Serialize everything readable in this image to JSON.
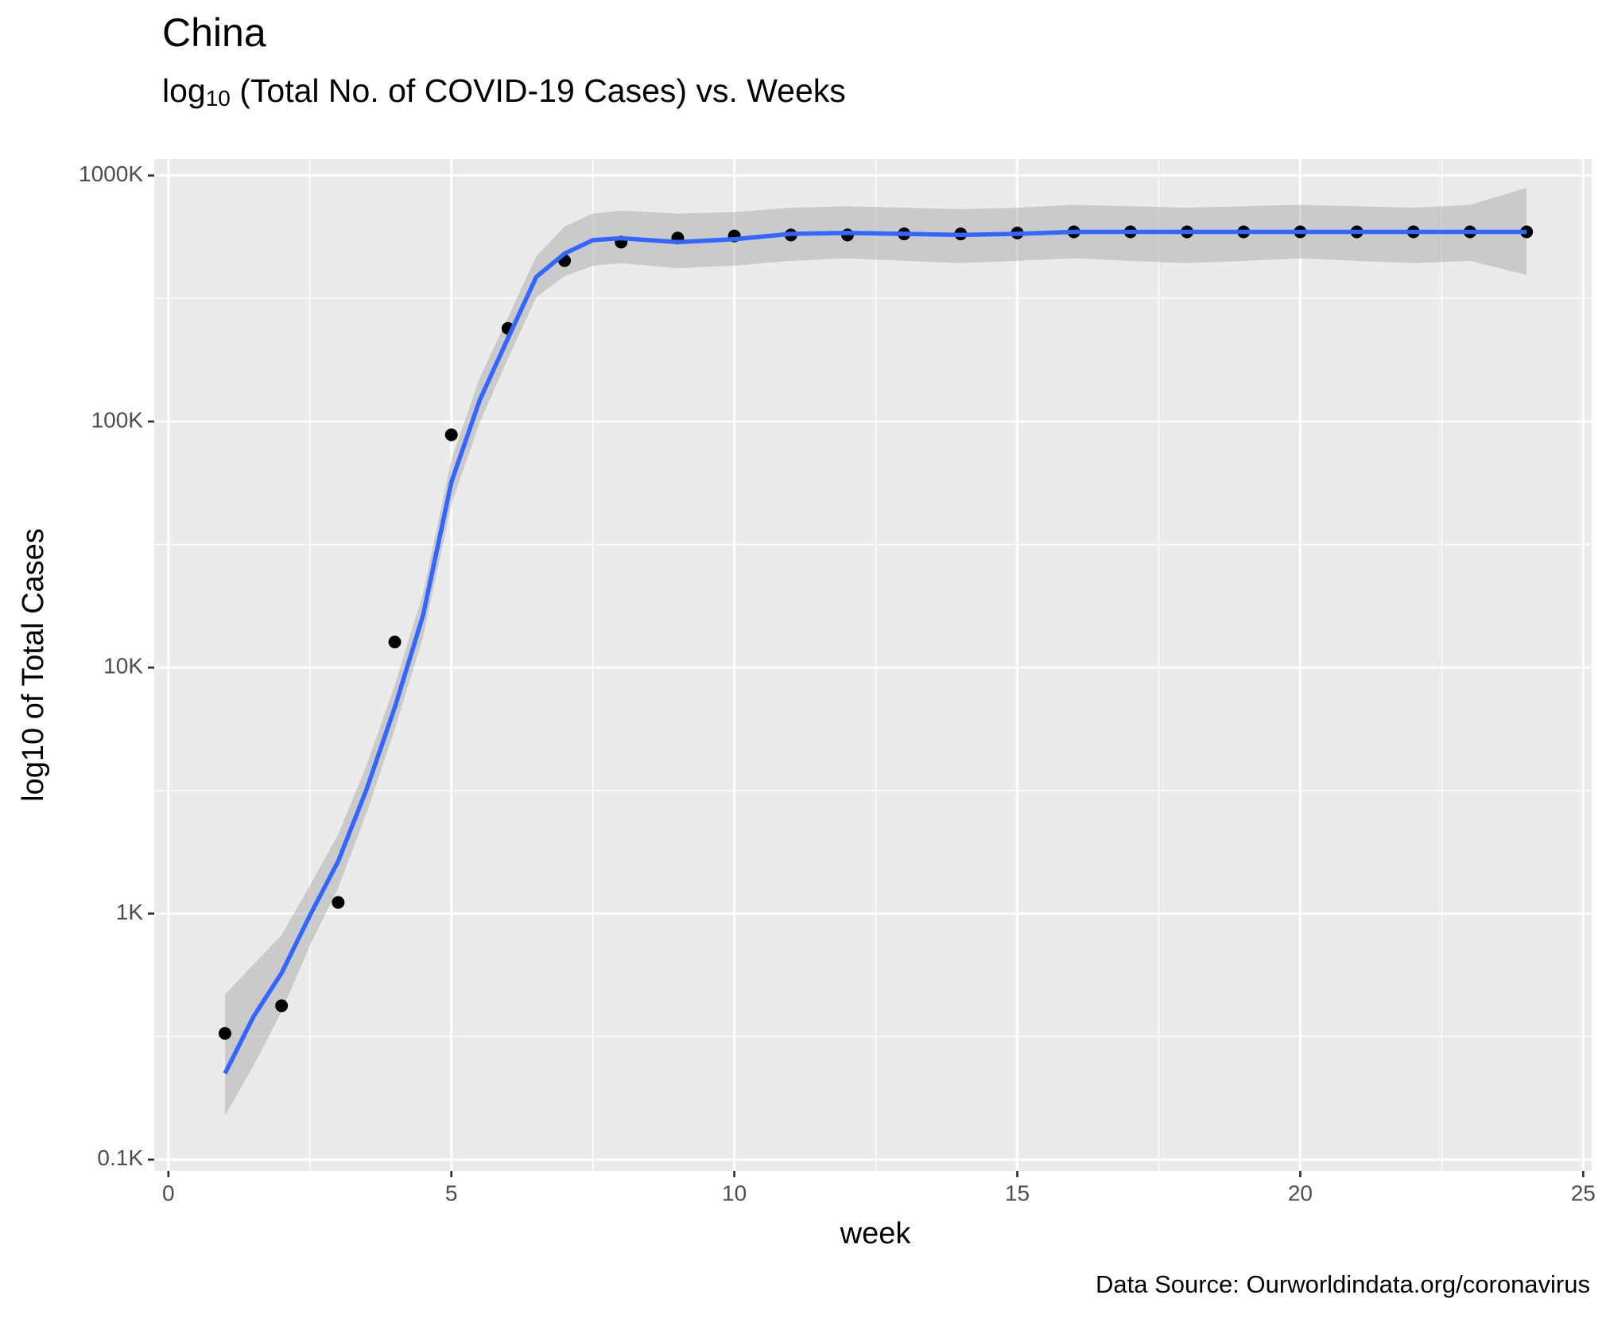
{
  "chart_data": {
    "type": "scatter-smooth",
    "title": "China",
    "subtitle": [
      "log",
      "10",
      " (Total No. of COVID-19 Cases) vs. Weeks"
    ],
    "x_label": "week",
    "y_label": "log10 of Total Cases",
    "caption": "Data Source: Ourworldindata.org/coronavirus",
    "log_y": true,
    "grid": true,
    "xlim": [
      -0.25,
      25.15
    ],
    "ylim": [
      90,
      1166000
    ],
    "xticks": [
      0,
      5,
      10,
      15,
      20,
      25
    ],
    "x_minor_ticks": [
      2.5,
      7.5,
      12.5,
      17.5,
      22.5
    ],
    "yticks": [
      {
        "value": 100,
        "label": "0.1K"
      },
      {
        "value": 1000,
        "label": "1K"
      },
      {
        "value": 10000,
        "label": "10K"
      },
      {
        "value": 100000,
        "label": "100K"
      },
      {
        "value": 1000000,
        "label": "1000K"
      }
    ],
    "y_minor_ticks": [
      316.2,
      3162,
      31623,
      316228
    ],
    "points": {
      "color": "#000000",
      "x": [
        1,
        2,
        3,
        4,
        5,
        6,
        7,
        8,
        9,
        10,
        11,
        12,
        13,
        14,
        15,
        16,
        17,
        18,
        19,
        20,
        21,
        22,
        23,
        24
      ],
      "values": [
        326,
        422,
        1110,
        12700,
        88300,
        239000,
        451000,
        536000,
        557000,
        568000,
        573000,
        573000,
        579000,
        579000,
        584000,
        590000,
        590000,
        590000,
        590000,
        590000,
        590000,
        590000,
        590000,
        590000
      ]
    },
    "smooth": {
      "color": "#3366ff",
      "band_color": "#999999",
      "x": [
        1,
        1.5,
        2,
        2.5,
        3,
        3.5,
        4,
        4.5,
        5,
        5.5,
        6,
        6.5,
        7,
        7.5,
        8,
        9,
        10,
        11,
        12,
        13,
        14,
        15,
        16,
        17,
        18,
        19,
        20,
        21,
        22,
        23,
        24
      ],
      "values": [
        224,
        380,
        573,
        982,
        1630,
        3190,
        6880,
        16300,
        56700,
        122000,
        218000,
        387000,
        482000,
        546000,
        556000,
        536000,
        551000,
        579000,
        584000,
        579000,
        573000,
        579000,
        590000,
        590000,
        590000,
        590000,
        590000,
        590000,
        590000,
        590000,
        590000
      ],
      "upper": [
        469,
        620,
        820,
        1300,
        2100,
        4000,
        8500,
        20000,
        70000,
        150000,
        265000,
        470000,
        620000,
        700000,
        720000,
        700000,
        710000,
        740000,
        750000,
        740000,
        730000,
        740000,
        760000,
        750000,
        740000,
        750000,
        760000,
        750000,
        740000,
        760000,
        891000
      ],
      "lower": [
        151,
        240,
        400,
        740,
        1270,
        2550,
        5600,
        13300,
        46000,
        99000,
        180000,
        320000,
        390000,
        430000,
        440000,
        420000,
        430000,
        450000,
        460000,
        450000,
        440000,
        450000,
        460000,
        450000,
        440000,
        450000,
        460000,
        450000,
        440000,
        450000,
        394000
      ]
    }
  }
}
